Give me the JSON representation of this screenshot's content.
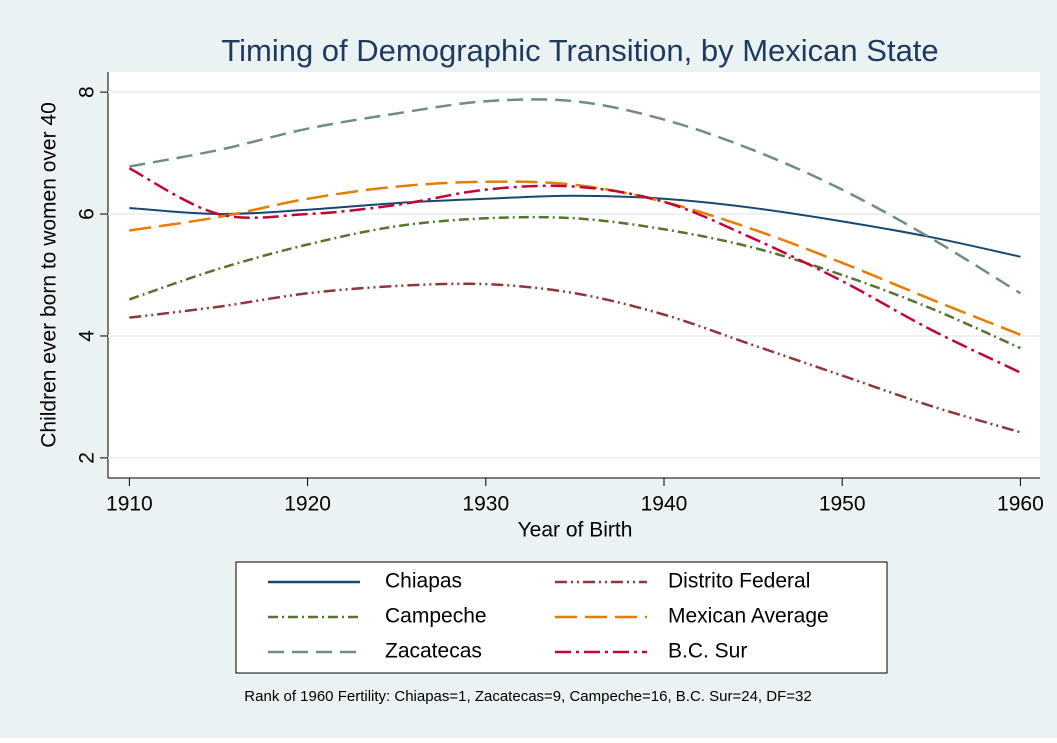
{
  "chart_data": {
    "type": "line",
    "title": "Timing of Demographic Transition, by Mexican State",
    "x_label": "Year of Birth",
    "y_label": "Children ever born to women over 40",
    "note": "Rank of 1960 Fertility: Chiapas=1, Zacatecas=9, Campeche=16, B.C. Sur=24, DF=32",
    "x": [
      1910,
      1915,
      1920,
      1925,
      1930,
      1935,
      1940,
      1945,
      1950,
      1955,
      1960
    ],
    "series": [
      {
        "name": "Chiapas",
        "color": "#1a476f",
        "dash": "none",
        "values": [
          6.1,
          6.0,
          6.07,
          6.18,
          6.25,
          6.3,
          6.25,
          6.1,
          5.88,
          5.62,
          5.3
        ]
      },
      {
        "name": "Distrito Federal",
        "color": "#90353b",
        "dash": "12 4 2 4 2 4",
        "values": [
          4.3,
          4.48,
          4.7,
          4.82,
          4.85,
          4.7,
          4.35,
          3.85,
          3.35,
          2.85,
          2.42
        ]
      },
      {
        "name": "Campeche",
        "color": "#55752f",
        "dash": "10 4 2 4",
        "values": [
          4.6,
          5.1,
          5.5,
          5.8,
          5.93,
          5.93,
          5.75,
          5.45,
          5.0,
          4.45,
          3.8
        ]
      },
      {
        "name": "Mexican Average",
        "color": "#e37e00",
        "dash": "22 8",
        "values": [
          5.73,
          5.95,
          6.25,
          6.45,
          6.53,
          6.48,
          6.2,
          5.75,
          5.2,
          4.6,
          4.02
        ]
      },
      {
        "name": "Zacatecas",
        "color": "#6e8e84",
        "dash": "16 8",
        "values": [
          6.78,
          7.05,
          7.4,
          7.65,
          7.85,
          7.85,
          7.55,
          7.05,
          6.4,
          5.6,
          4.7
        ]
      },
      {
        "name": "B.C. Sur",
        "color": "#c10534",
        "dash": "16 5 3 5",
        "values": [
          6.75,
          6.0,
          6.0,
          6.15,
          6.4,
          6.45,
          6.2,
          5.6,
          4.9,
          4.1,
          3.4
        ]
      }
    ],
    "xlim": [
      1908.8,
      1961.1
    ],
    "xticks": [
      1910,
      1920,
      1930,
      1940,
      1950,
      1960
    ],
    "ylim": [
      1.67,
      8.33
    ],
    "yticks": [
      2,
      4,
      6,
      8
    ],
    "grid": true
  }
}
